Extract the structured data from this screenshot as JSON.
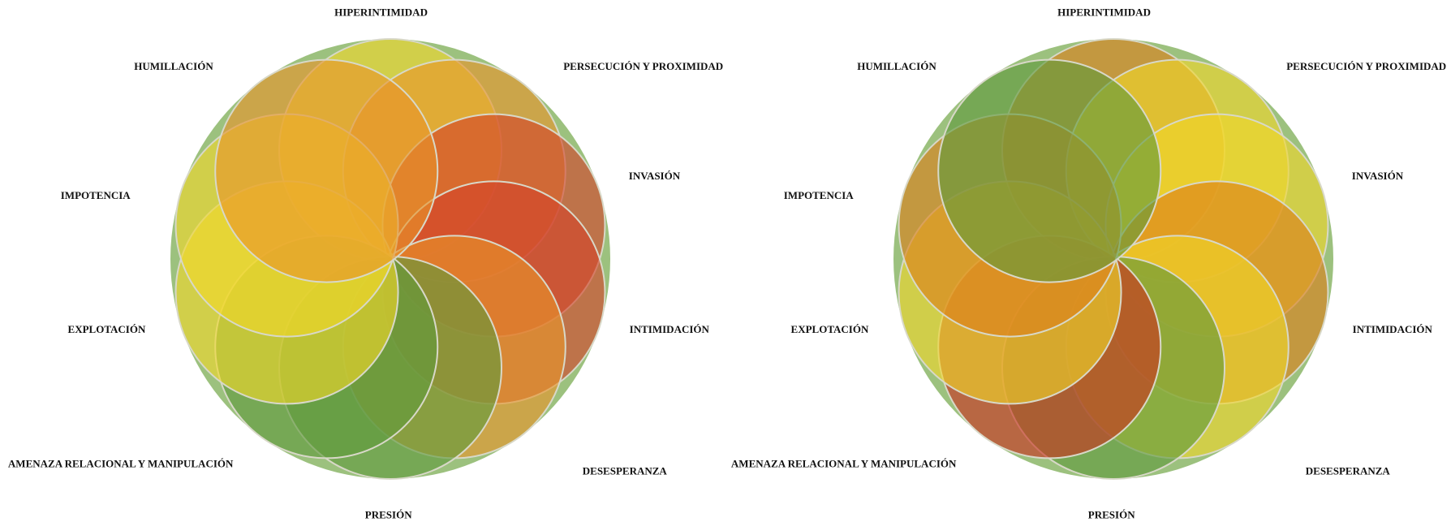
{
  "chart_data": [
    {
      "type": "rosette",
      "categories": [
        "HIPERINTIMIDAD",
        "PERSECUCIÓN Y PROXIMIDAD",
        "INVASIÓN",
        "INTIMIDACIÓN",
        "DESESPERANZA",
        "PRESIÓN",
        "AMENAZA RELACIONAL Y MANIPULACIÓN",
        "EXPLOTACIÓN",
        "IMPOTENCIA",
        "HUMILLACIÓN"
      ],
      "colors": [
        "#f2d82a",
        "#e8952a",
        "#d4432a",
        "#d4432a",
        "#e8952a",
        "#5f9a3c",
        "#5f9a3c",
        "#f2d82a",
        "#f2d82a",
        "#e8952a"
      ]
    },
    {
      "type": "rosette",
      "categories": [
        "HIPERINTIMIDAD",
        "PERSECUCIÓN Y PROXIMIDAD",
        "INVASIÓN",
        "INTIMIDACIÓN",
        "DESESPERANZA",
        "PRESIÓN",
        "AMENAZA RELACIONAL Y MANIPULACIÓN",
        "EXPLOTACIÓN",
        "IMPOTENCIA",
        "HUMILLACIÓN"
      ],
      "colors": [
        "#dc7f1a",
        "#f0d62a",
        "#f0d62a",
        "#dc7f1a",
        "#f0d62a",
        "#5f9a3c",
        "#c9301f",
        "#f0d62a",
        "#dc7f1a",
        "#5f9a3c"
      ]
    }
  ]
}
